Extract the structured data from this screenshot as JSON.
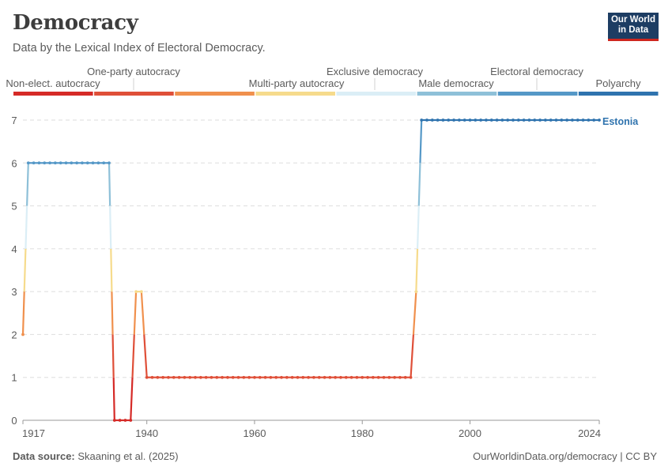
{
  "header": {
    "title": "Democracy",
    "subtitle": "Data by the Lexical Index of Electoral Democracy."
  },
  "logo": {
    "line1": "Our World",
    "line2": "in Data"
  },
  "footer": {
    "source_label": "Data source:",
    "source_text": "Skaaning et al. (2025)",
    "url": "OurWorldinData.org/democracy | CC BY"
  },
  "colors": {
    "level0": "#d52a27",
    "level1": "#df4f38",
    "level2": "#f0904d",
    "level3": "#f6db8c",
    "level4": "#dbeef6",
    "level5": "#8ec0d8",
    "level6": "#5598c7",
    "level7": "#2f73ae",
    "grid": "#dddddd",
    "axis": "#999999"
  },
  "legend": [
    {
      "label": "Non-elect. autocracy",
      "color": "#d52a27"
    },
    {
      "label": "One-party autocracy",
      "color": "#df4f38"
    },
    {
      "label": "Multi-party autocracy",
      "color": "#f0904d"
    },
    {
      "label": "Exclusive democracy",
      "color": "#f6db8c"
    },
    {
      "label": "Male democracy",
      "color": "#dbeef6"
    },
    {
      "label": "Electoral democracy",
      "color": "#8ec0d8"
    },
    {
      "label": "Polyarchy",
      "color": "#5598c7"
    },
    {
      "label": "",
      "color": "#2f73ae"
    }
  ],
  "chart_data": {
    "type": "line",
    "title": "Democracy",
    "subtitle": "Data by the Lexical Index of Electoral Democracy.",
    "xlim": [
      1917,
      2024
    ],
    "ylim": [
      0,
      7
    ],
    "x_ticks": [
      1917,
      1940,
      1960,
      1980,
      2000,
      2024
    ],
    "y_ticks": [
      0,
      1,
      2,
      3,
      4,
      5,
      6,
      7
    ],
    "grid": true,
    "series": [
      {
        "name": "Estonia",
        "points": [
          [
            1917,
            2
          ],
          [
            1918,
            6
          ],
          [
            1919,
            6
          ],
          [
            1920,
            6
          ],
          [
            1921,
            6
          ],
          [
            1922,
            6
          ],
          [
            1923,
            6
          ],
          [
            1924,
            6
          ],
          [
            1925,
            6
          ],
          [
            1926,
            6
          ],
          [
            1927,
            6
          ],
          [
            1928,
            6
          ],
          [
            1929,
            6
          ],
          [
            1930,
            6
          ],
          [
            1931,
            6
          ],
          [
            1932,
            6
          ],
          [
            1933,
            6
          ],
          [
            1934,
            0
          ],
          [
            1935,
            0
          ],
          [
            1936,
            0
          ],
          [
            1937,
            0
          ],
          [
            1938,
            3
          ],
          [
            1939,
            3
          ],
          [
            1940,
            1
          ],
          [
            1941,
            1
          ],
          [
            1942,
            1
          ],
          [
            1943,
            1
          ],
          [
            1944,
            1
          ],
          [
            1945,
            1
          ],
          [
            1946,
            1
          ],
          [
            1947,
            1
          ],
          [
            1948,
            1
          ],
          [
            1949,
            1
          ],
          [
            1950,
            1
          ],
          [
            1951,
            1
          ],
          [
            1952,
            1
          ],
          [
            1953,
            1
          ],
          [
            1954,
            1
          ],
          [
            1955,
            1
          ],
          [
            1956,
            1
          ],
          [
            1957,
            1
          ],
          [
            1958,
            1
          ],
          [
            1959,
            1
          ],
          [
            1960,
            1
          ],
          [
            1961,
            1
          ],
          [
            1962,
            1
          ],
          [
            1963,
            1
          ],
          [
            1964,
            1
          ],
          [
            1965,
            1
          ],
          [
            1966,
            1
          ],
          [
            1967,
            1
          ],
          [
            1968,
            1
          ],
          [
            1969,
            1
          ],
          [
            1970,
            1
          ],
          [
            1971,
            1
          ],
          [
            1972,
            1
          ],
          [
            1973,
            1
          ],
          [
            1974,
            1
          ],
          [
            1975,
            1
          ],
          [
            1976,
            1
          ],
          [
            1977,
            1
          ],
          [
            1978,
            1
          ],
          [
            1979,
            1
          ],
          [
            1980,
            1
          ],
          [
            1981,
            1
          ],
          [
            1982,
            1
          ],
          [
            1983,
            1
          ],
          [
            1984,
            1
          ],
          [
            1985,
            1
          ],
          [
            1986,
            1
          ],
          [
            1987,
            1
          ],
          [
            1988,
            1
          ],
          [
            1989,
            1
          ],
          [
            1990,
            3
          ],
          [
            1991,
            7
          ],
          [
            1992,
            7
          ],
          [
            1993,
            7
          ],
          [
            1994,
            7
          ],
          [
            1995,
            7
          ],
          [
            1996,
            7
          ],
          [
            1997,
            7
          ],
          [
            1998,
            7
          ],
          [
            1999,
            7
          ],
          [
            2000,
            7
          ],
          [
            2001,
            7
          ],
          [
            2002,
            7
          ],
          [
            2003,
            7
          ],
          [
            2004,
            7
          ],
          [
            2005,
            7
          ],
          [
            2006,
            7
          ],
          [
            2007,
            7
          ],
          [
            2008,
            7
          ],
          [
            2009,
            7
          ],
          [
            2010,
            7
          ],
          [
            2011,
            7
          ],
          [
            2012,
            7
          ],
          [
            2013,
            7
          ],
          [
            2014,
            7
          ],
          [
            2015,
            7
          ],
          [
            2016,
            7
          ],
          [
            2017,
            7
          ],
          [
            2018,
            7
          ],
          [
            2019,
            7
          ],
          [
            2020,
            7
          ],
          [
            2021,
            7
          ],
          [
            2022,
            7
          ],
          [
            2023,
            7
          ],
          [
            2024,
            7
          ]
        ]
      }
    ]
  }
}
